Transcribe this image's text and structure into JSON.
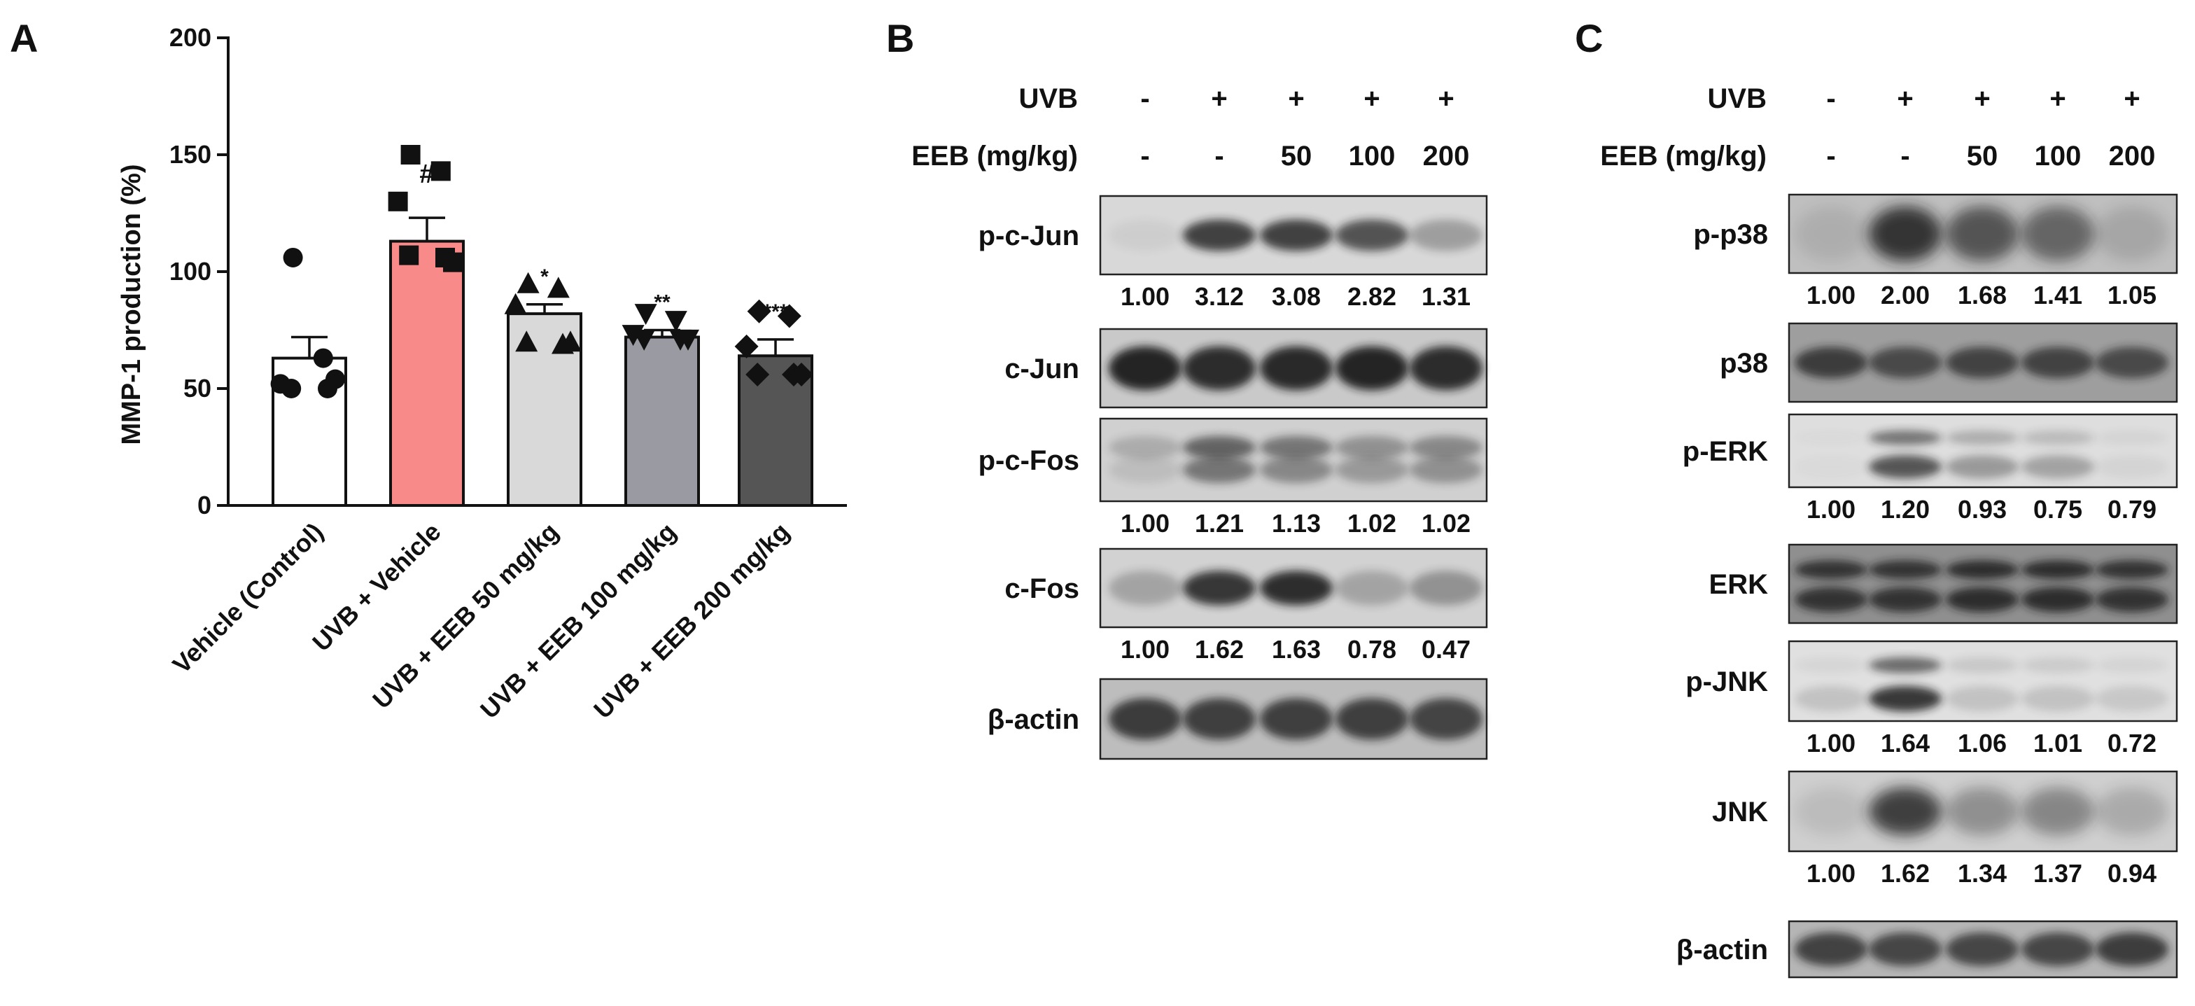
{
  "chart_data": [
    {
      "type": "bar",
      "panel": "A",
      "ylabel": "MMP-1 production (%)",
      "ylim": [
        0,
        200
      ],
      "yticks": [
        "0",
        "50",
        "100",
        "150",
        "200"
      ],
      "categories": [
        "Vehicle (Control)",
        "UVB + Vehicle",
        "UVB + EEB 50 mg/kg",
        "UVB + EEB 100 mg/kg",
        "UVB + EEB 200 mg/kg"
      ],
      "values": [
        63,
        113,
        82,
        72,
        64
      ],
      "errors": [
        9,
        10,
        4,
        3,
        7
      ],
      "significance": [
        "",
        "#",
        "*",
        "**",
        "***"
      ],
      "bar_colors": [
        "#ffffff",
        "#f88a8a",
        "#d9d9d9",
        "#9a9aa2",
        "#555555"
      ],
      "markers": [
        "circle",
        "square",
        "triangle",
        "triangle-down",
        "diamond"
      ],
      "points": [
        [
          106,
          63,
          52,
          50,
          50,
          54
        ],
        [
          150,
          143,
          130,
          107,
          106,
          104
        ],
        [
          95,
          93,
          86,
          70,
          69,
          70
        ],
        [
          82,
          79,
          73,
          71,
          71,
          71
        ],
        [
          83,
          81,
          68,
          56,
          56,
          56
        ]
      ]
    },
    {
      "type": "table",
      "panel": "B",
      "condition_rows": [
        {
          "label": "UVB",
          "values": [
            "-",
            "+",
            "+",
            "+",
            "+"
          ]
        },
        {
          "label": "EEB (mg/kg)",
          "values": [
            "-",
            "-",
            "50",
            "100",
            "200"
          ]
        }
      ],
      "blots": [
        {
          "label": "p-c-Jun",
          "quant": [
            "1.00",
            "3.12",
            "3.08",
            "2.82",
            "1.31"
          ]
        },
        {
          "label": "c-Jun",
          "quant": []
        },
        {
          "label": "p-c-Fos",
          "quant": [
            "1.00",
            "1.21",
            "1.13",
            "1.02",
            "1.02"
          ]
        },
        {
          "label": "c-Fos",
          "quant": [
            "1.00",
            "1.62",
            "1.63",
            "0.78",
            "0.47"
          ]
        },
        {
          "label": "β-actin",
          "quant": []
        }
      ]
    },
    {
      "type": "table",
      "panel": "C",
      "condition_rows": [
        {
          "label": "UVB",
          "values": [
            "-",
            "+",
            "+",
            "+",
            "+"
          ]
        },
        {
          "label": "EEB (mg/kg)",
          "values": [
            "-",
            "-",
            "50",
            "100",
            "200"
          ]
        }
      ],
      "blots": [
        {
          "label": "p-p38",
          "quant": [
            "1.00",
            "2.00",
            "1.68",
            "1.41",
            "1.05"
          ]
        },
        {
          "label": "p38",
          "quant": []
        },
        {
          "label": "p-ERK",
          "quant": [
            "1.00",
            "1.20",
            "0.93",
            "0.75",
            "0.79"
          ]
        },
        {
          "label": "ERK",
          "quant": []
        },
        {
          "label": "p-JNK",
          "quant": [
            "1.00",
            "1.64",
            "1.06",
            "1.01",
            "0.72"
          ]
        },
        {
          "label": "JNK",
          "quant": [
            "1.00",
            "1.62",
            "1.34",
            "1.37",
            "0.94"
          ]
        },
        {
          "label": "β-actin",
          "quant": []
        }
      ]
    }
  ]
}
